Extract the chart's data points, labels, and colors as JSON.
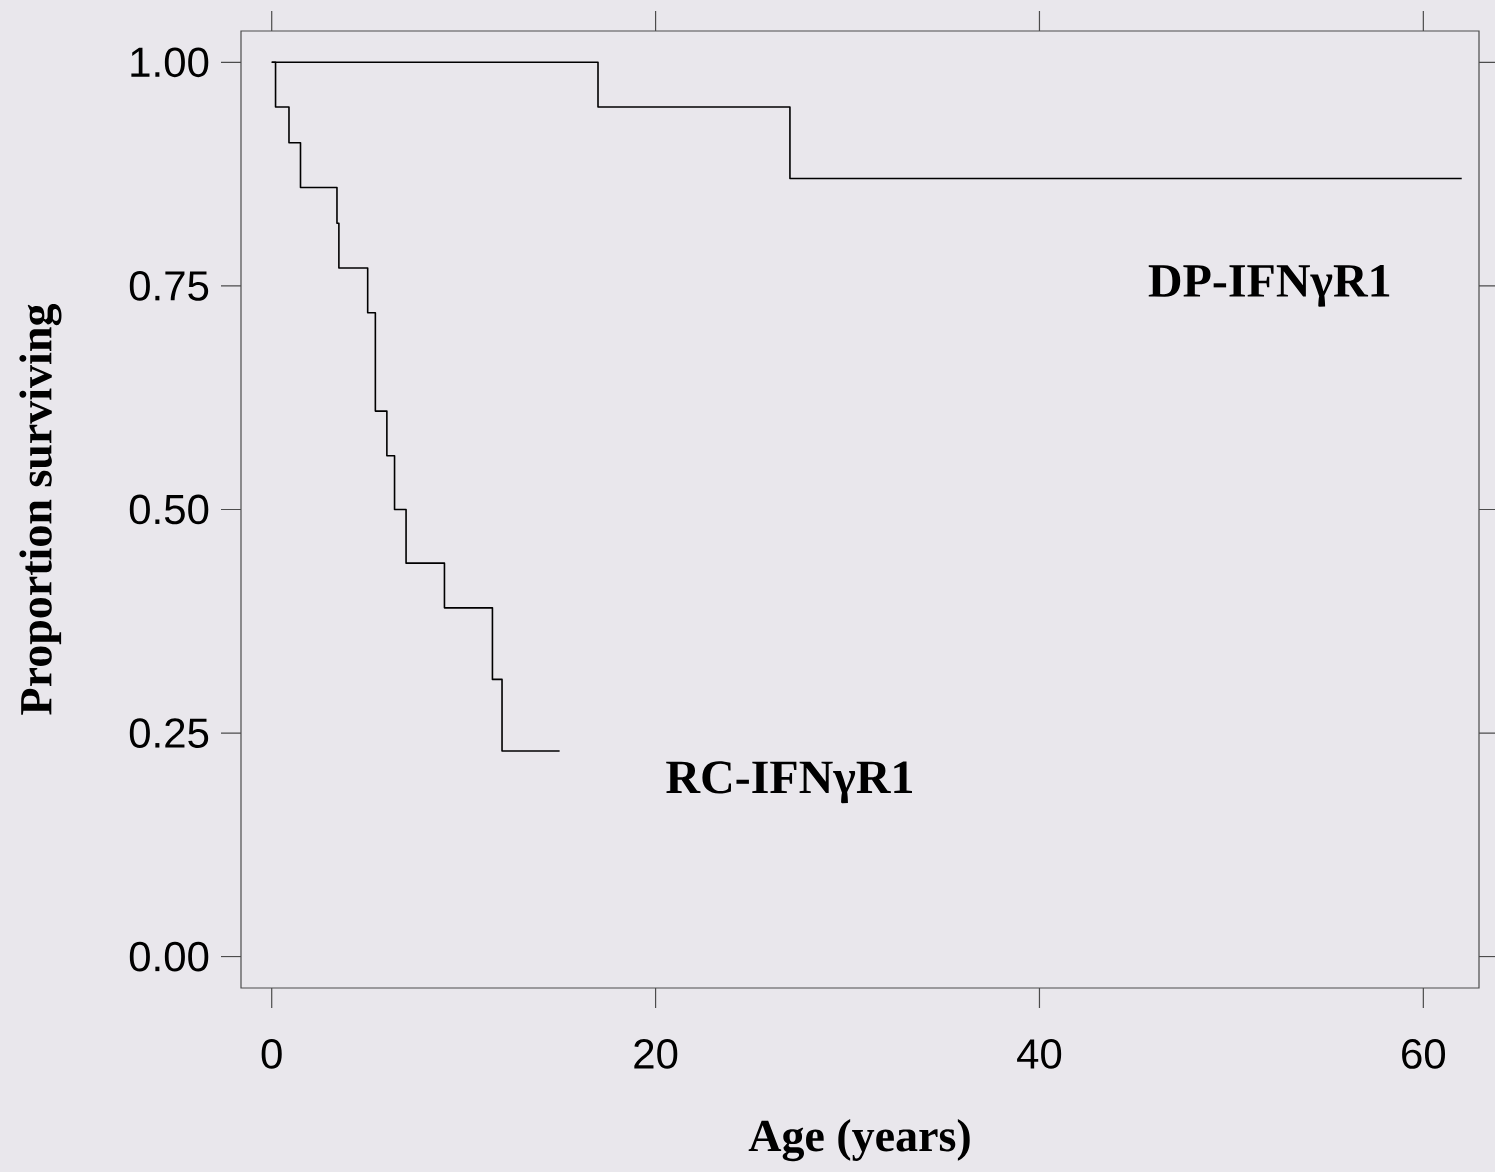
{
  "chart_data": {
    "type": "step",
    "xlabel": "Age (years)",
    "ylabel": "Proportion surviving",
    "xlim": [
      -1.6,
      62.9
    ],
    "ylim": [
      -0.035,
      1.035
    ],
    "xticks": [
      0,
      20,
      40,
      60
    ],
    "yticks": [
      {
        "value": 0,
        "label": "0.00"
      },
      {
        "value": 0.25,
        "label": "0.25"
      },
      {
        "value": 0.5,
        "label": "0.50"
      },
      {
        "value": 0.75,
        "label": "0.75"
      },
      {
        "value": 1,
        "label": "1.00"
      }
    ],
    "series": [
      {
        "name": "DP-IFNγR1",
        "color": "#000000",
        "x": [
          0,
          17,
          27,
          62
        ],
        "values": [
          1.0,
          0.95,
          0.87,
          0.87
        ]
      },
      {
        "name": "RC-IFNγR1",
        "color": "#000000",
        "x": [
          0,
          0.2,
          0.9,
          1.5,
          3.4,
          3.5,
          5.0,
          5.4,
          6.0,
          6.4,
          7.0,
          9.0,
          11.5,
          12.0,
          15.0
        ],
        "values": [
          1.0,
          0.95,
          0.91,
          0.86,
          0.82,
          0.77,
          0.72,
          0.61,
          0.56,
          0.5,
          0.44,
          0.39,
          0.31,
          0.23,
          0.23
        ]
      }
    ]
  }
}
